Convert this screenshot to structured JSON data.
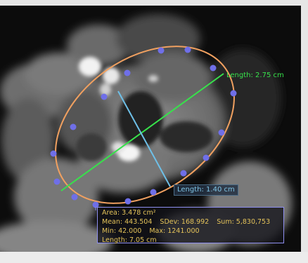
{
  "measurements": {
    "length_green": "Length: 2.75 cm",
    "length_blue": "Length: 1.40 cm"
  },
  "roi_stats": {
    "area": "Area: 3.478 cm²",
    "mean": "Mean: 443.504",
    "sdev": "SDev: 168.992",
    "sum": "Sum: 5,830,753",
    "min": "Min: 42.000",
    "max": "Max: 1241.000",
    "length": "Length: 7.05 cm"
  },
  "colors": {
    "roi_outline": "#f0a060",
    "roi_handles": "#6f6fe8",
    "green_line": "#37e24b",
    "blue_line": "#6ec0e8",
    "stats_text": "#e4c35a",
    "stats_border": "#8e8ff0"
  }
}
